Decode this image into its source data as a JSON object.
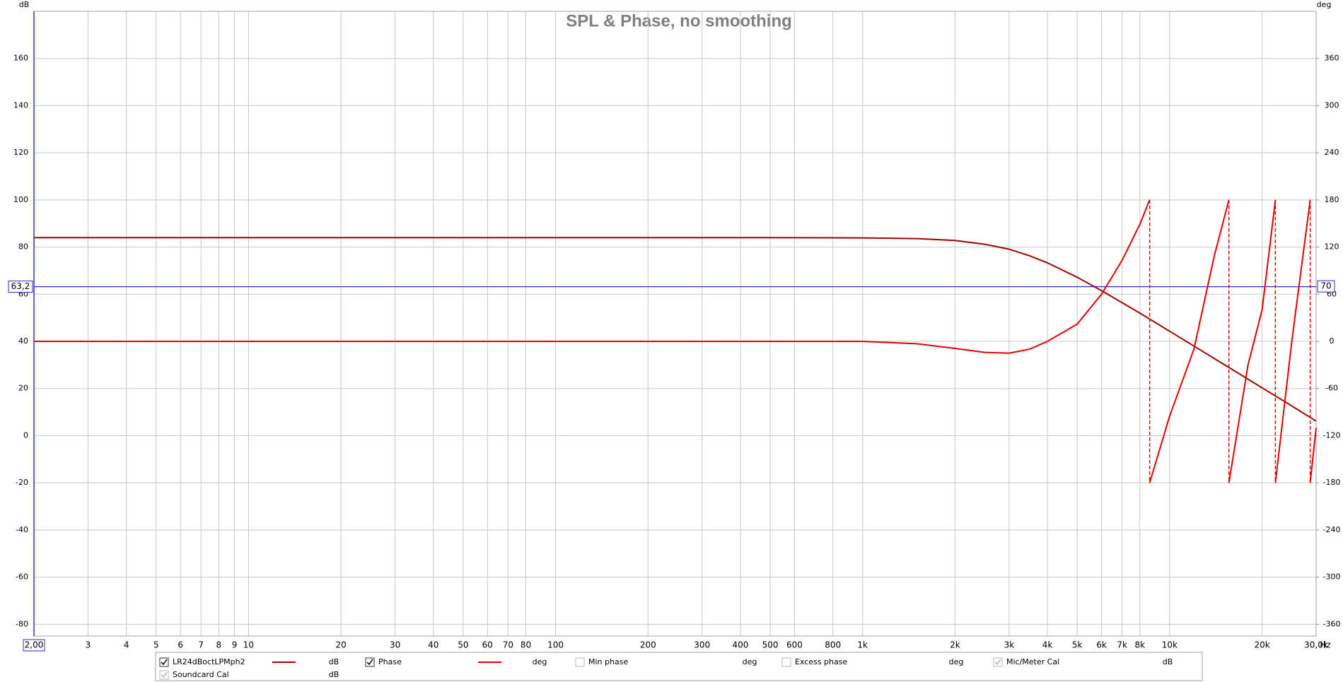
{
  "chart_data": {
    "type": "line",
    "title": "SPL & Phase, no smoothing",
    "y_unit": "dB",
    "y2_unit": "deg",
    "x_unit": "Hz",
    "xlog": true,
    "grid": true,
    "xlim": [
      2,
      30000
    ],
    "xticks": [
      {
        "value": 2,
        "label": "2,00"
      },
      3,
      4,
      5,
      6,
      7,
      8,
      9,
      10,
      20,
      30,
      40,
      50,
      60,
      70,
      80,
      100,
      200,
      300,
      400,
      500,
      600,
      800,
      {
        "value": 1000,
        "label": "1k"
      },
      {
        "value": 2000,
        "label": "2k"
      },
      {
        "value": 3000,
        "label": "3k"
      },
      {
        "value": 4000,
        "label": "4k"
      },
      {
        "value": 5000,
        "label": "5k"
      },
      {
        "value": 6000,
        "label": "6k"
      },
      {
        "value": 7000,
        "label": "7k"
      },
      {
        "value": 8000,
        "label": "8k"
      },
      {
        "value": 10000,
        "label": "10k"
      },
      {
        "value": 20000,
        "label": "20k"
      },
      {
        "value": 30000,
        "label": "30,0k"
      }
    ],
    "ylim": [
      -85,
      180
    ],
    "yticks": [
      -80,
      -60,
      -40,
      -20,
      0,
      20,
      40,
      60,
      80,
      100,
      120,
      140,
      160
    ],
    "y2lim": [
      -375,
      420
    ],
    "y2ticks": [
      -360,
      -300,
      -240,
      -180,
      -120,
      -60,
      0,
      60,
      120,
      180,
      240,
      300,
      360
    ],
    "cursor": {
      "y": {
        "value": 63.2,
        "label": "63,2"
      },
      "y2": {
        "value": 70,
        "label": "70"
      },
      "color": "#2a2ad0"
    },
    "series": [
      {
        "name": "LR24dBoctLPMph2",
        "unit": "dB",
        "color": "#a00000",
        "checked": true,
        "x": [
          2,
          3,
          5,
          10,
          20,
          50,
          100,
          200,
          500,
          1000,
          1500,
          2000,
          2500,
          3000,
          3500,
          4000,
          5000,
          6000,
          7000,
          8000,
          10000,
          12000,
          15000,
          20000,
          25000,
          30000
        ],
        "values": [
          84,
          84,
          84,
          84,
          84,
          84,
          84,
          84,
          84,
          83.9,
          83.6,
          82.8,
          81.2,
          79.1,
          76.3,
          73.3,
          67.2,
          61.5,
          56.4,
          52.0,
          44.3,
          38.0,
          30.3,
          20.3,
          12.6,
          6.2
        ]
      },
      {
        "name": "Phase",
        "unit": "deg",
        "color": "#e00000",
        "checked": true,
        "axis": "y2",
        "x": [
          2,
          10,
          100,
          1000,
          1500,
          2000,
          2500,
          3000,
          3500,
          4000,
          5000,
          6000,
          7000,
          8000,
          8610,
          null,
          8610,
          10000,
          12000,
          14000,
          15600,
          null,
          15600,
          18000,
          20000,
          22100,
          null,
          22100,
          25000,
          28700,
          null,
          28700,
          30000
        ],
        "values": [
          0,
          0,
          0,
          0,
          -3,
          -9,
          -14,
          -15,
          -10,
          0,
          22,
          60,
          103,
          149,
          180,
          null,
          -180,
          -95,
          -10,
          110,
          180,
          null,
          -180,
          -30,
          40,
          180,
          null,
          -180,
          0,
          180,
          null,
          -180,
          -110
        ]
      }
    ],
    "legend_extra": [
      {
        "name": "Min phase",
        "unit": "deg",
        "checked": false
      },
      {
        "name": "Excess phase",
        "unit": "deg",
        "checked": false
      },
      {
        "name": "Mic/Meter Cal",
        "unit": "dB",
        "checked": true
      },
      {
        "name": "Soundcard Cal",
        "unit": "dB",
        "checked": true
      }
    ]
  }
}
